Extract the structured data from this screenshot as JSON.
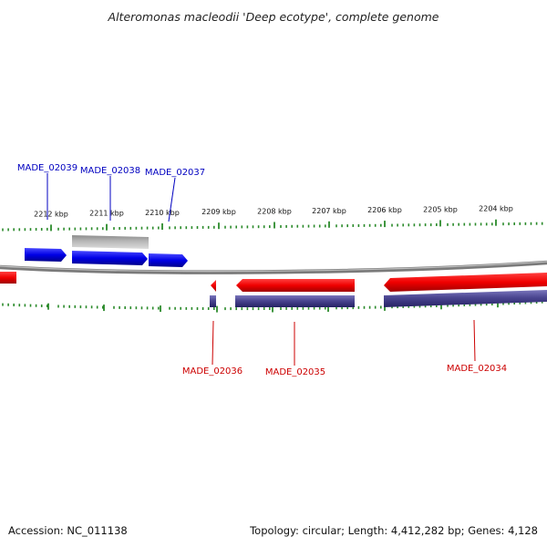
{
  "title": "Alteromonas macleodii 'Deep ecotype', complete genome",
  "accession": "Accession: NC_011138",
  "topology": "Topology: circular; Length: 4,412,282 bp; Genes: 4,128",
  "colors": {
    "forward_gene": "#0000e0",
    "reverse_gene": "#e00000",
    "forward_label": "#0000c0",
    "reverse_label": "#cc0000",
    "tick": "#2a8a2a",
    "backbone": "#808080",
    "grey_feature": "#b8b8b8",
    "purple_feature": "#4a4590"
  },
  "scale_ticks": [
    "2212 kbp",
    "2211 kbp",
    "2210 kbp",
    "2209 kbp",
    "2208 kbp",
    "2207 kbp",
    "2206 kbp",
    "2205 kbp",
    "2204 kbp"
  ],
  "forward_genes": [
    {
      "name": "MADE_02039"
    },
    {
      "name": "MADE_02038"
    },
    {
      "name": "MADE_02037"
    }
  ],
  "reverse_genes": [
    {
      "name": "MADE_02036"
    },
    {
      "name": "MADE_02035"
    },
    {
      "name": "MADE_02034"
    }
  ]
}
